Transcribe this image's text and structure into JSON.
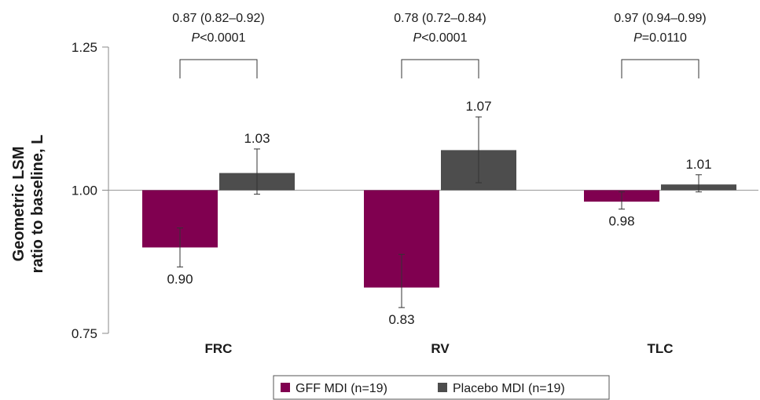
{
  "chart_data": {
    "type": "bar",
    "ylabel": [
      "Geometric LSM",
      "ratio to baseline, L"
    ],
    "ylim": [
      0.75,
      1.25
    ],
    "yticks": [
      "0.75",
      "1.00",
      "1.25"
    ],
    "baseline": 1.0,
    "categories": [
      "FRC",
      "RV",
      "TLC"
    ],
    "series": [
      {
        "name": "GFF MDI (n=19)",
        "color": "#800050",
        "values": [
          0.9,
          0.83,
          0.98
        ],
        "labels": [
          "0.90",
          "0.83",
          "0.98"
        ],
        "err_low": [
          0.866,
          0.795,
          0.967
        ],
        "err_high": [
          0.934,
          0.888,
          0.997
        ]
      },
      {
        "name": "Placebo MDI (n=19)",
        "color": "#4d4d4d",
        "values": [
          1.03,
          1.07,
          1.01
        ],
        "labels": [
          "1.03",
          "1.07",
          "1.01"
        ],
        "err_low": [
          0.993,
          1.013,
          0.997
        ],
        "err_high": [
          1.072,
          1.128,
          1.027
        ]
      }
    ],
    "annotations": [
      {
        "ratio": "0.87 (0.82–0.92)",
        "p_prefix": "P",
        "p_rest": "<0.0001"
      },
      {
        "ratio": "0.78 (0.72–0.84)",
        "p_prefix": "P",
        "p_rest": "<0.0001"
      },
      {
        "ratio": "0.97 (0.94–0.99)",
        "p_prefix": "P",
        "p_rest": "=0.0110"
      }
    ],
    "legend_position": "bottom",
    "grid": false
  }
}
